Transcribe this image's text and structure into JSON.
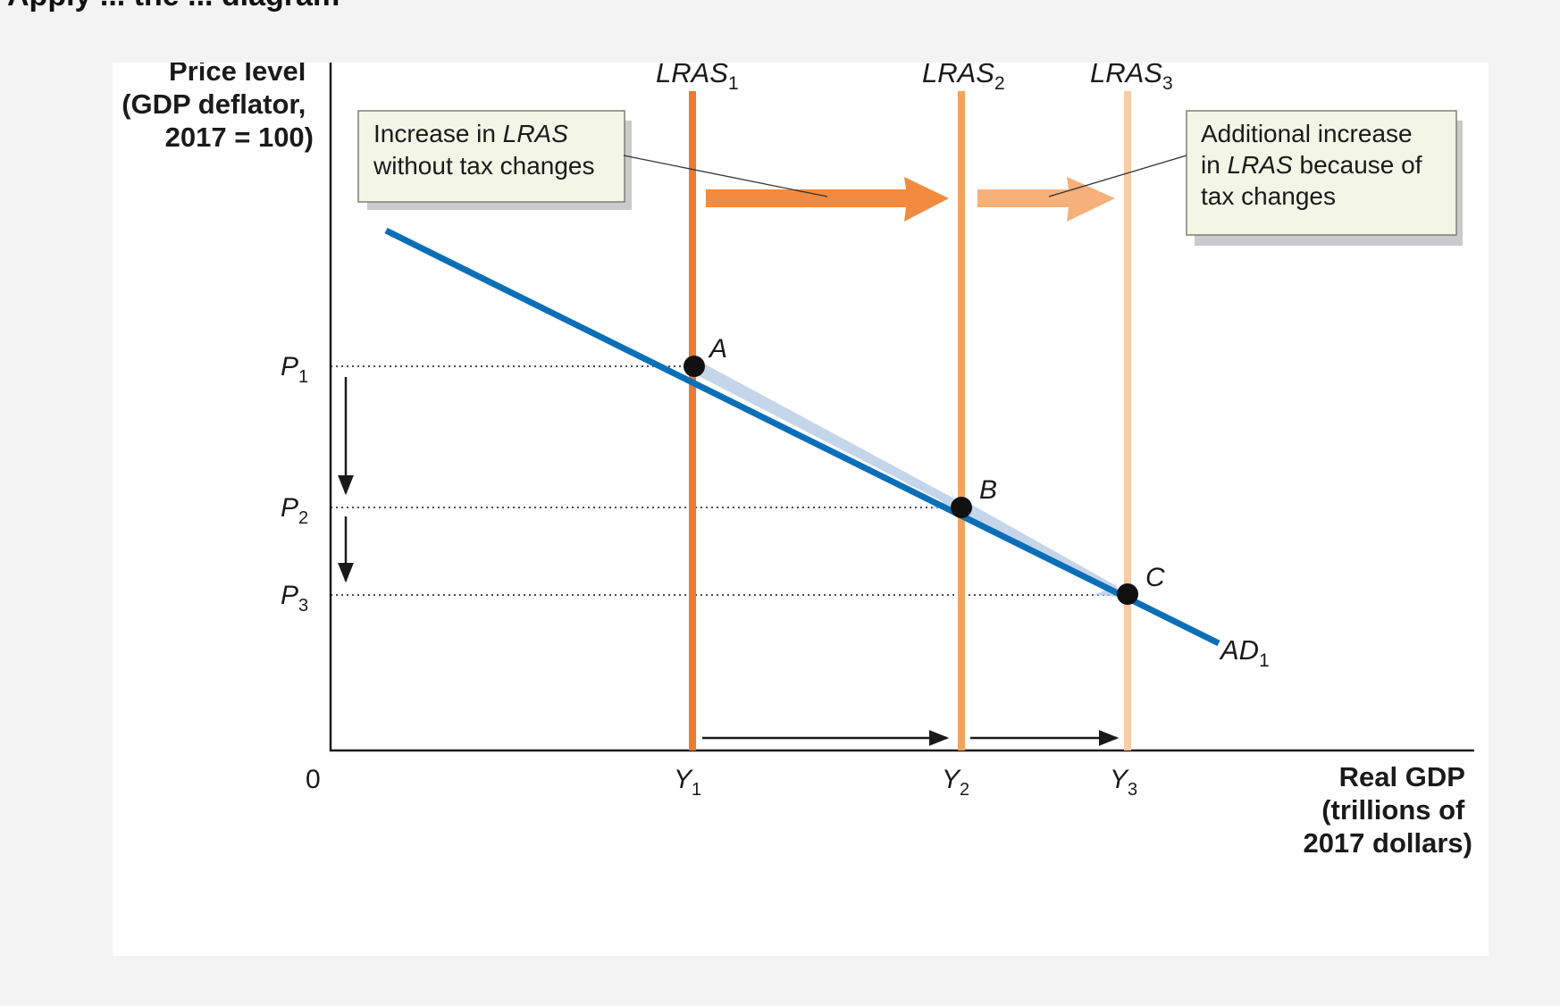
{
  "header_fragment": "Apply ... the ... diagram",
  "chart_data": {
    "type": "line",
    "y_axis_title": [
      "Price level",
      "(GDP deflator,",
      "2017 = 100)"
    ],
    "x_axis_title": [
      "Real GDP",
      "(trillions of",
      "2017 dollars)"
    ],
    "origin_label": "0",
    "x_ticks": [
      {
        "base": "Y",
        "sub": "1"
      },
      {
        "base": "Y",
        "sub": "2"
      },
      {
        "base": "Y",
        "sub": "3"
      }
    ],
    "y_ticks": [
      {
        "base": "P",
        "sub": "1"
      },
      {
        "base": "P",
        "sub": "2"
      },
      {
        "base": "P",
        "sub": "3"
      }
    ],
    "lras_curves": [
      {
        "base": "LRAS",
        "sub": "1",
        "at": "Y1",
        "color": "#ee7a2e"
      },
      {
        "base": "LRAS",
        "sub": "2",
        "at": "Y2",
        "color": "#f4a35e"
      },
      {
        "base": "LRAS",
        "sub": "3",
        "at": "Y3",
        "color": "#f8cca6"
      }
    ],
    "ad_curve": {
      "base": "AD",
      "sub": "1",
      "color": "#0b6fb8"
    },
    "equilibria": [
      {
        "label": "A",
        "x": "Y1",
        "y": "P1"
      },
      {
        "label": "B",
        "x": "Y2",
        "y": "P2"
      },
      {
        "label": "C",
        "x": "Y3",
        "y": "P3"
      }
    ],
    "callouts": [
      {
        "name": "no-tax-change",
        "lines": [
          [
            "Increase in ",
            "LRAS"
          ],
          [
            "without tax changes",
            ""
          ]
        ]
      },
      {
        "name": "tax-change",
        "lines": [
          [
            "Additional increase",
            ""
          ],
          [
            "in ",
            "LRAS",
            " because of"
          ],
          [
            "tax changes",
            ""
          ]
        ]
      }
    ]
  }
}
